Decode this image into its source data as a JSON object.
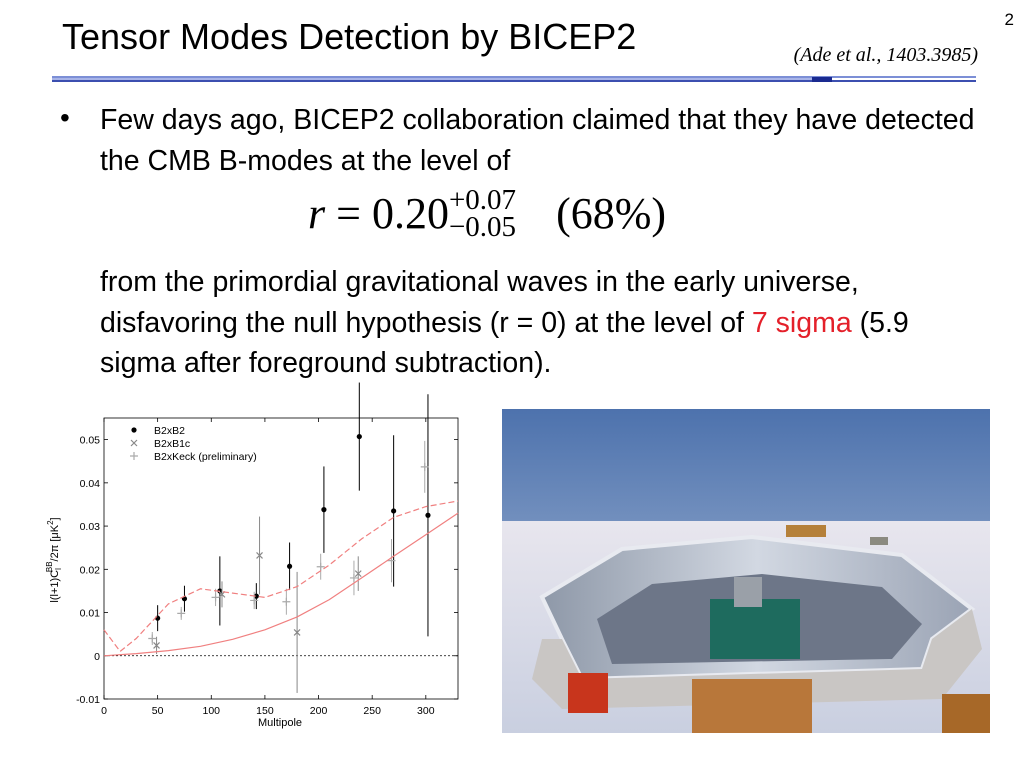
{
  "header": {
    "title": "Tensor Modes Detection by BICEP2",
    "citation": "(Ade et al., 1403.3985)",
    "page_number": "2"
  },
  "body": {
    "bullet": "•",
    "paragraph1": "Few days ago, BICEP2 collaboration claimed that they have detected the CMB B-modes at the level of",
    "equation": {
      "lhs": "r",
      "equals": "=",
      "value": "0.20",
      "upper": "+0.07",
      "lower": "−0.05",
      "note": "(68%)"
    },
    "paragraph2": {
      "before": "from the primordial gravitational waves in the early universe, disfavoring the null hypothesis (r = 0) at the level of ",
      "highlight": "7 sigma",
      "after": " (5.9 sigma after foreground subtraction)."
    }
  },
  "chart_data": {
    "type": "scatter",
    "x_label": "Multipole",
    "y_label": [
      "l(l+1)C",
      "l",
      "BB",
      "/2π [μK",
      "2",
      "]"
    ],
    "xlim": [
      0,
      330
    ],
    "ylim": [
      -0.01,
      0.055
    ],
    "xticks": [
      0,
      50,
      100,
      150,
      200,
      250,
      300
    ],
    "yticks": [
      -0.01,
      0,
      0.01,
      0.02,
      0.03,
      0.04,
      0.05
    ],
    "reference_line": 0,
    "legend": "upper left",
    "series": [
      {
        "name": "B2xB2",
        "color": "#000000",
        "marker": "dot",
        "x": [
          50,
          75,
          108,
          142,
          173,
          205,
          238,
          270,
          302
        ],
        "values": [
          0.0087,
          0.0132,
          0.015,
          0.0138,
          0.0207,
          0.0338,
          0.0507,
          0.0335,
          0.0325
        ],
        "errors": [
          0.003,
          0.003,
          0.008,
          0.003,
          0.0055,
          0.01,
          0.0125,
          0.0175,
          0.028
        ]
      },
      {
        "name": "B2xB1c",
        "color": "#888888",
        "marker": "x",
        "x": [
          49,
          110,
          145,
          180,
          237
        ],
        "values": [
          0.0024,
          0.0142,
          0.0232,
          0.0054,
          0.019
        ],
        "errors": [
          0.002,
          0.003,
          0.009,
          0.014,
          0.004
        ]
      },
      {
        "name": "B2xKeck (preliminary)",
        "color": "#aaaaaa",
        "marker": "plus",
        "x": [
          45,
          72,
          104,
          140,
          170,
          202,
          233,
          268,
          299
        ],
        "values": [
          0.004,
          0.0098,
          0.0135,
          0.0128,
          0.0125,
          0.0206,
          0.018,
          0.022,
          0.0437
        ],
        "errors": [
          0.0015,
          0.0015,
          0.002,
          0.002,
          0.003,
          0.003,
          0.004,
          0.005,
          0.006
        ]
      },
      {
        "color": "#f08080",
        "style": "dashed",
        "x": [
          0,
          15,
          30,
          60,
          90,
          120,
          150,
          180,
          210,
          240,
          270,
          300,
          330
        ],
        "values": [
          0.006,
          0.001,
          0.004,
          0.012,
          0.0155,
          0.0145,
          0.0135,
          0.016,
          0.021,
          0.027,
          0.032,
          0.0345,
          0.0358
        ]
      },
      {
        "color": "#f08080",
        "style": "solid",
        "x": [
          0,
          30,
          60,
          90,
          120,
          150,
          180,
          210,
          240,
          270,
          300,
          330
        ],
        "values": [
          0,
          0.0005,
          0.0012,
          0.0022,
          0.0038,
          0.006,
          0.009,
          0.013,
          0.018,
          0.023,
          0.028,
          0.033
        ]
      }
    ]
  }
}
